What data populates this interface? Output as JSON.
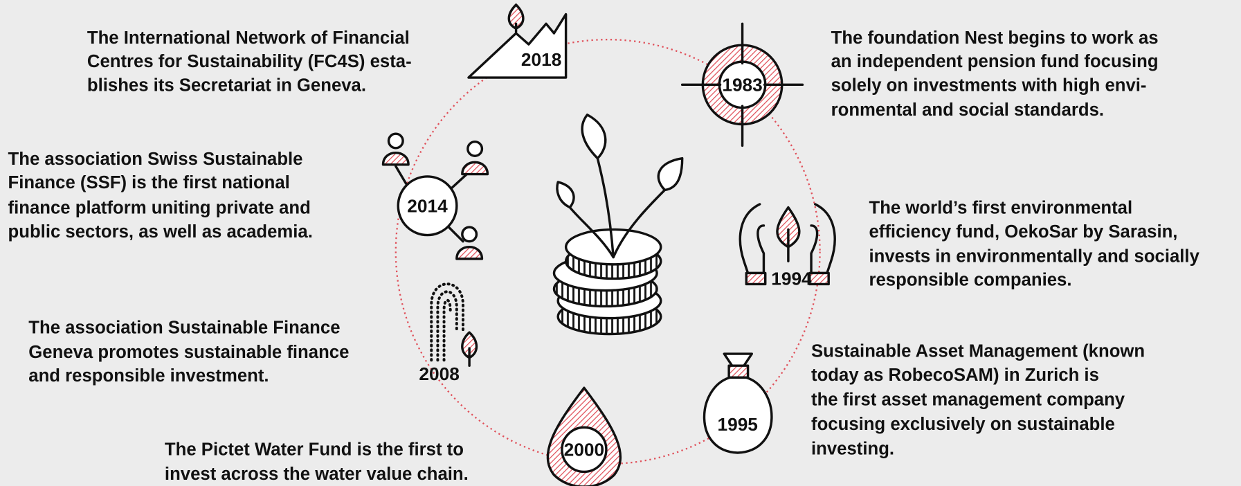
{
  "events": [
    {
      "year": "2018",
      "lines": [
        "The International Network of Financial",
        "Centres for Sustainability (FC4S) esta-",
        "blishes its Secretariat in Geneva."
      ]
    },
    {
      "year": "1983",
      "lines": [
        "The foundation Nest begins to work as",
        "an independent pension fund focusing",
        "solely on investments with high envi-",
        "ronmental and social standards."
      ]
    },
    {
      "year": "2014",
      "lines": [
        "The association Swiss Sustainable",
        "Finance (SSF) is the first national",
        "finance platform uniting private and",
        "public sectors, as well as academia."
      ]
    },
    {
      "year": "1994",
      "lines": [
        "The world’s first environmental",
        "efficiency fund, OekoSar by Sarasin,",
        "invests in environmentally and socially",
        "responsible companies."
      ]
    },
    {
      "year": "2008",
      "lines": [
        "The association Sustainable Finance",
        "Geneva promotes sustainable finance",
        "and responsible investment."
      ]
    },
    {
      "year": "1995",
      "lines": [
        "Sustainable Asset Management (known",
        "today as RobecoSAM) in Zurich is",
        "the first asset management company",
        "focusing exclusively on sustainable",
        "investing."
      ]
    },
    {
      "year": "2000",
      "lines": [
        "The Pictet Water Fund is the first to",
        "invest across the water value chain."
      ]
    }
  ]
}
